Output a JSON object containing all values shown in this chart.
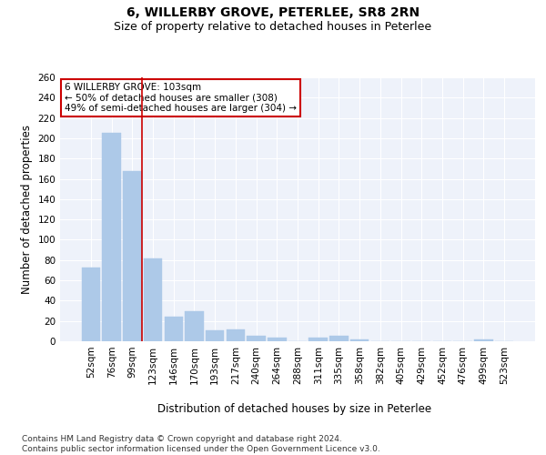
{
  "title_line1": "6, WILLERBY GROVE, PETERLEE, SR8 2RN",
  "title_line2": "Size of property relative to detached houses in Peterlee",
  "xlabel": "Distribution of detached houses by size in Peterlee",
  "ylabel": "Number of detached properties",
  "categories": [
    "52sqm",
    "76sqm",
    "99sqm",
    "123sqm",
    "146sqm",
    "170sqm",
    "193sqm",
    "217sqm",
    "240sqm",
    "264sqm",
    "288sqm",
    "311sqm",
    "335sqm",
    "358sqm",
    "382sqm",
    "405sqm",
    "429sqm",
    "452sqm",
    "476sqm",
    "499sqm",
    "523sqm"
  ],
  "values": [
    73,
    205,
    168,
    82,
    24,
    30,
    11,
    12,
    5,
    4,
    0,
    4,
    5,
    2,
    0,
    0,
    0,
    0,
    0,
    2,
    0
  ],
  "bar_color": "#adc9e8",
  "bar_edge_color": "#adc9e8",
  "highlight_bar_index": 2,
  "highlight_line_color": "#cc0000",
  "annotation_box_text": "6 WILLERBY GROVE: 103sqm\n← 50% of detached houses are smaller (308)\n49% of semi-detached houses are larger (304) →",
  "annotation_box_color": "#ffffff",
  "annotation_box_edge_color": "#cc0000",
  "ylim": [
    0,
    260
  ],
  "yticks": [
    0,
    20,
    40,
    60,
    80,
    100,
    120,
    140,
    160,
    180,
    200,
    220,
    240,
    260
  ],
  "footnote": "Contains HM Land Registry data © Crown copyright and database right 2024.\nContains public sector information licensed under the Open Government Licence v3.0.",
  "background_color": "#eef2fa",
  "grid_color": "#ffffff",
  "title_fontsize": 10,
  "subtitle_fontsize": 9,
  "axis_label_fontsize": 8.5,
  "tick_fontsize": 7.5,
  "annotation_fontsize": 7.5,
  "footnote_fontsize": 6.5
}
